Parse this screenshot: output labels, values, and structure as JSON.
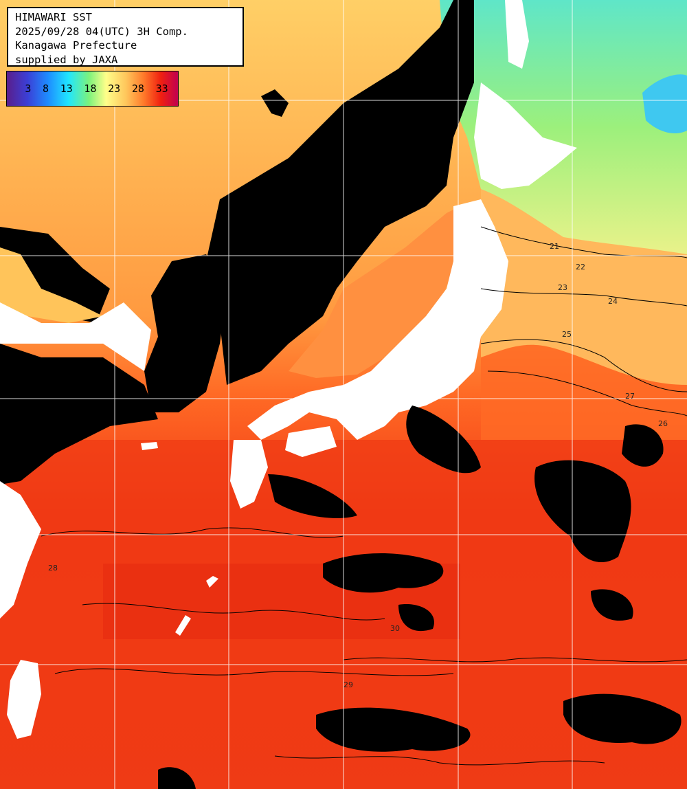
{
  "header": {
    "line1": "HIMAWARI SST",
    "line2": "2025/09/28 04(UTC) 3H Comp.",
    "line3": "Kanagawa Prefecture",
    "line4": "supplied by JAXA"
  },
  "legend": {
    "ticks": [
      "3",
      "8",
      "13",
      "18",
      "23",
      "28",
      "33"
    ],
    "gradient_colors": [
      "#5a1e8c",
      "#3b3fd6",
      "#1e8cff",
      "#20e6ff",
      "#7cf27c",
      "#ffff8a",
      "#ffc45a",
      "#ff7a2a",
      "#f02010",
      "#c00050"
    ]
  },
  "colors": {
    "land": "#ffffff",
    "cloud": "#000000",
    "gridline": "#ffffff",
    "contour": "#000000"
  },
  "contour_labels": [
    "21",
    "22",
    "23",
    "24",
    "25",
    "26",
    "27",
    "28",
    "29",
    "30"
  ]
}
